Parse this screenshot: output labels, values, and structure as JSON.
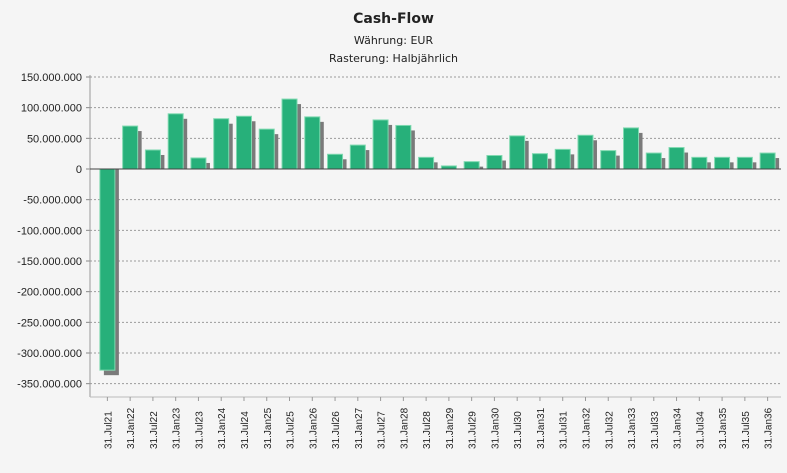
{
  "chart_data": {
    "type": "bar",
    "title": "Cash-Flow",
    "subtitles": [
      "Währung: EUR",
      "Rasterung: Halbjährlich"
    ],
    "xlabel": "",
    "ylabel": "",
    "ylim": [
      -375000000,
      150000000
    ],
    "yticks": [
      150000000,
      100000000,
      50000000,
      0,
      -50000000,
      -100000000,
      -150000000,
      -200000000,
      -250000000,
      -300000000,
      -350000000
    ],
    "ytick_labels": [
      "150.000.000",
      "100.000.000",
      "50.000.000",
      "0",
      "-50.000.000",
      "-100.000.000",
      "-150.000.000",
      "-200.000.000",
      "-250.000.000",
      "-300.000.000",
      "-350.000.000"
    ],
    "grid": true,
    "categories": [
      "31.Jul21",
      "31.Jan22",
      "31.Jul22",
      "31.Jan23",
      "31.Jul23",
      "31.Jan24",
      "31.Jul24",
      "31.Jan25",
      "31.Jul25",
      "31.Jan26",
      "31.Jul26",
      "31.Jan27",
      "31.Jul27",
      "31.Jan28",
      "31.Jul28",
      "31.Jan29",
      "31.Jul29",
      "31.Jan30",
      "31.Jul30",
      "31.Jan31",
      "31.Jul31",
      "31.Jan32",
      "31.Jul32",
      "31.Jan33",
      "31.Jul33",
      "31.Jan34",
      "31.Jul34",
      "31.Jan35",
      "31.Jul35",
      "31.Jan36"
    ],
    "values": [
      -328000000,
      70000000,
      31000000,
      90000000,
      18000000,
      82000000,
      86000000,
      65000000,
      114000000,
      85000000,
      24000000,
      39000000,
      80000000,
      71000000,
      19000000,
      5000000,
      12000000,
      22000000,
      54000000,
      25000000,
      32000000,
      55000000,
      30000000,
      67000000,
      26000000,
      35000000,
      19000000,
      19000000,
      19000000,
      26000000
    ],
    "colors": {
      "bar": "#27b07a",
      "bar_highlight": "#7fd9b0",
      "shadow": "#7a7a7a",
      "grid": "#9a9a9a"
    }
  }
}
